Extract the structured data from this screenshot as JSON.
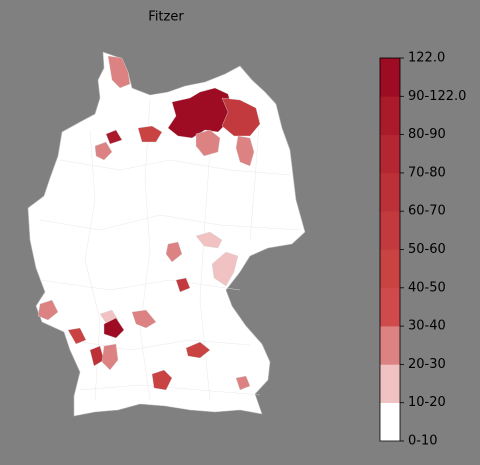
{
  "title": "Fitzer",
  "colorbar": {
    "labels": [
      "0-10",
      "10-20",
      "20-30",
      "30-40",
      "40-50",
      "50-60",
      "60-70",
      "70-80",
      "80-90",
      "90-122.0",
      "122.0"
    ],
    "colors": [
      "#ffffff",
      "#f1c2c2",
      "#dc8282",
      "#cf4b4b",
      "#c94343",
      "#c33a3e",
      "#bc3038",
      "#b42632",
      "#aa1a2b",
      "#9d0c22"
    ]
  }
}
